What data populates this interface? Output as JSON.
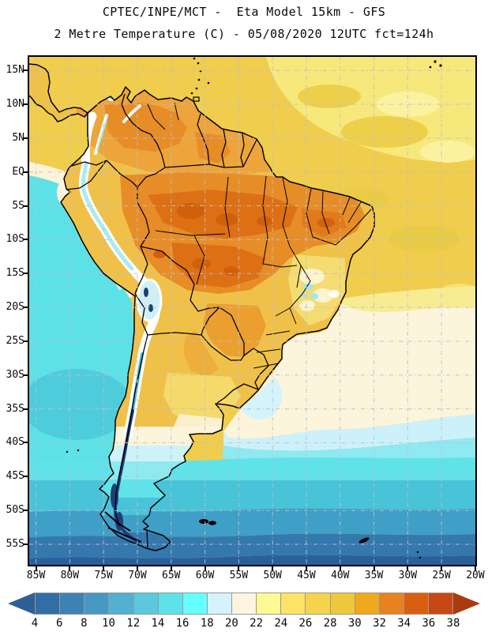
{
  "title": {
    "line1": "CPTEC/INPE/MCT -  Eta Model 15km - GFS",
    "line2": "2 Metre Temperature (C) - 05/08/2020 12UTC fct=124h"
  },
  "axes": {
    "lat_labels": [
      "15N",
      "10N",
      "5N",
      "EQ",
      "5S",
      "10S",
      "15S",
      "20S",
      "25S",
      "30S",
      "35S",
      "40S",
      "45S",
      "50S",
      "55S"
    ],
    "lon_labels": [
      "85W",
      "80W",
      "75W",
      "70W",
      "65W",
      "60W",
      "55W",
      "50W",
      "45W",
      "40W",
      "35W",
      "30W",
      "25W",
      "20W"
    ]
  },
  "colorbar": {
    "tick_labels": [
      "4",
      "6",
      "8",
      "10",
      "12",
      "14",
      "16",
      "18",
      "20",
      "22",
      "24",
      "26",
      "28",
      "30",
      "32",
      "34",
      "36",
      "38"
    ],
    "segment_colors": [
      "#336da6",
      "#3d82b4",
      "#4798c2",
      "#52b0d0",
      "#5bc8dd",
      "#5de2e8",
      "#66ffff",
      "#d4f3fc",
      "#fdf5e0",
      "#fdfa96",
      "#fbe467",
      "#f5d44c",
      "#edc83e",
      "#f0a81c",
      "#e8821e",
      "#d95f10",
      "#c84815"
    ],
    "left_arrow_color": "#2e5f94",
    "right_arrow_color": "#ab3a10",
    "units": "C"
  },
  "map_palette": {
    "ocean_warm_gold": "#f0cd4c",
    "ocean_pale_yellow": "#f7e87c",
    "ocean_cream": "#fdf4dc",
    "ocean_pale_cyan": "#cdf1fa",
    "ocean_cyan": "#5ce1e7",
    "ocean_teal": "#49c3d8",
    "ocean_steel": "#3f9fc6",
    "ocean_blue": "#3478ad",
    "ocean_dark_blue": "#2b5f9c",
    "land_warm": "#f0c149",
    "land_orange": "#e78d27",
    "land_hot_orange": "#d15f0c",
    "andes_white": "#ffffff",
    "andes_cyan": "#a8ecf2",
    "andes_navy": "#1d3f78",
    "border_color": "#000000",
    "grid_color": "#bcc0cc"
  },
  "chart_data": {
    "type": "heatmap",
    "title": "2 Metre Temperature (C)",
    "source": "CPTEC/INPE/MCT",
    "model": "Eta Model 15km - GFS",
    "run": "05/08/2020 12UTC",
    "forecast_hour": "fct=124h",
    "colorbar_values_c": [
      4,
      6,
      8,
      10,
      12,
      14,
      16,
      18,
      20,
      22,
      24,
      26,
      28,
      30,
      32,
      34,
      36,
      38
    ],
    "lat_extent": [
      "15N",
      "55S"
    ],
    "lon_extent": [
      "85W",
      "20W"
    ],
    "grid_interval_deg": 5
  }
}
